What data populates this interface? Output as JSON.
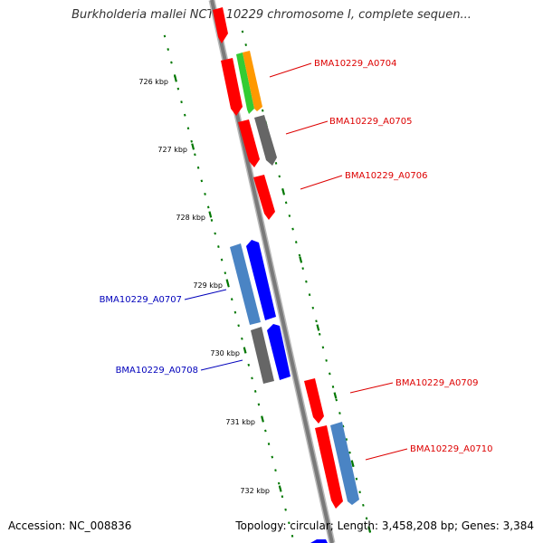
{
  "title": "Burkholderia mallei NCTC 10229 chromosome I, complete sequen...",
  "accession": "Accession: NC_008836",
  "summary": "Topology: circular; Length: 3,458,208 bp; Genes: 3,384",
  "colors": {
    "backbone": "#808080",
    "tick": "#007700",
    "forward_label": "#dd0000",
    "reverse_label": "#0000bb",
    "red": "#ff0000",
    "orange": "#ff9900",
    "green": "#33cc33",
    "gray": "#666666",
    "blue": "#0000ff",
    "steelblue": "#4a84c4"
  },
  "scale_labels": [
    "726 kbp",
    "727 kbp",
    "728 kbp",
    "729 kbp",
    "730 kbp",
    "731 kbp",
    "732 kbp"
  ],
  "gene_labels": [
    {
      "text": "BMA10229_A0704",
      "strand": "forward"
    },
    {
      "text": "BMA10229_A0705",
      "strand": "forward"
    },
    {
      "text": "BMA10229_A0706",
      "strand": "forward"
    },
    {
      "text": "BMA10229_A0707",
      "strand": "reverse"
    },
    {
      "text": "BMA10229_A0708",
      "strand": "reverse"
    },
    {
      "text": "BMA10229_A0709",
      "strand": "forward"
    },
    {
      "text": "BMA10229_A0710",
      "strand": "forward"
    }
  ]
}
